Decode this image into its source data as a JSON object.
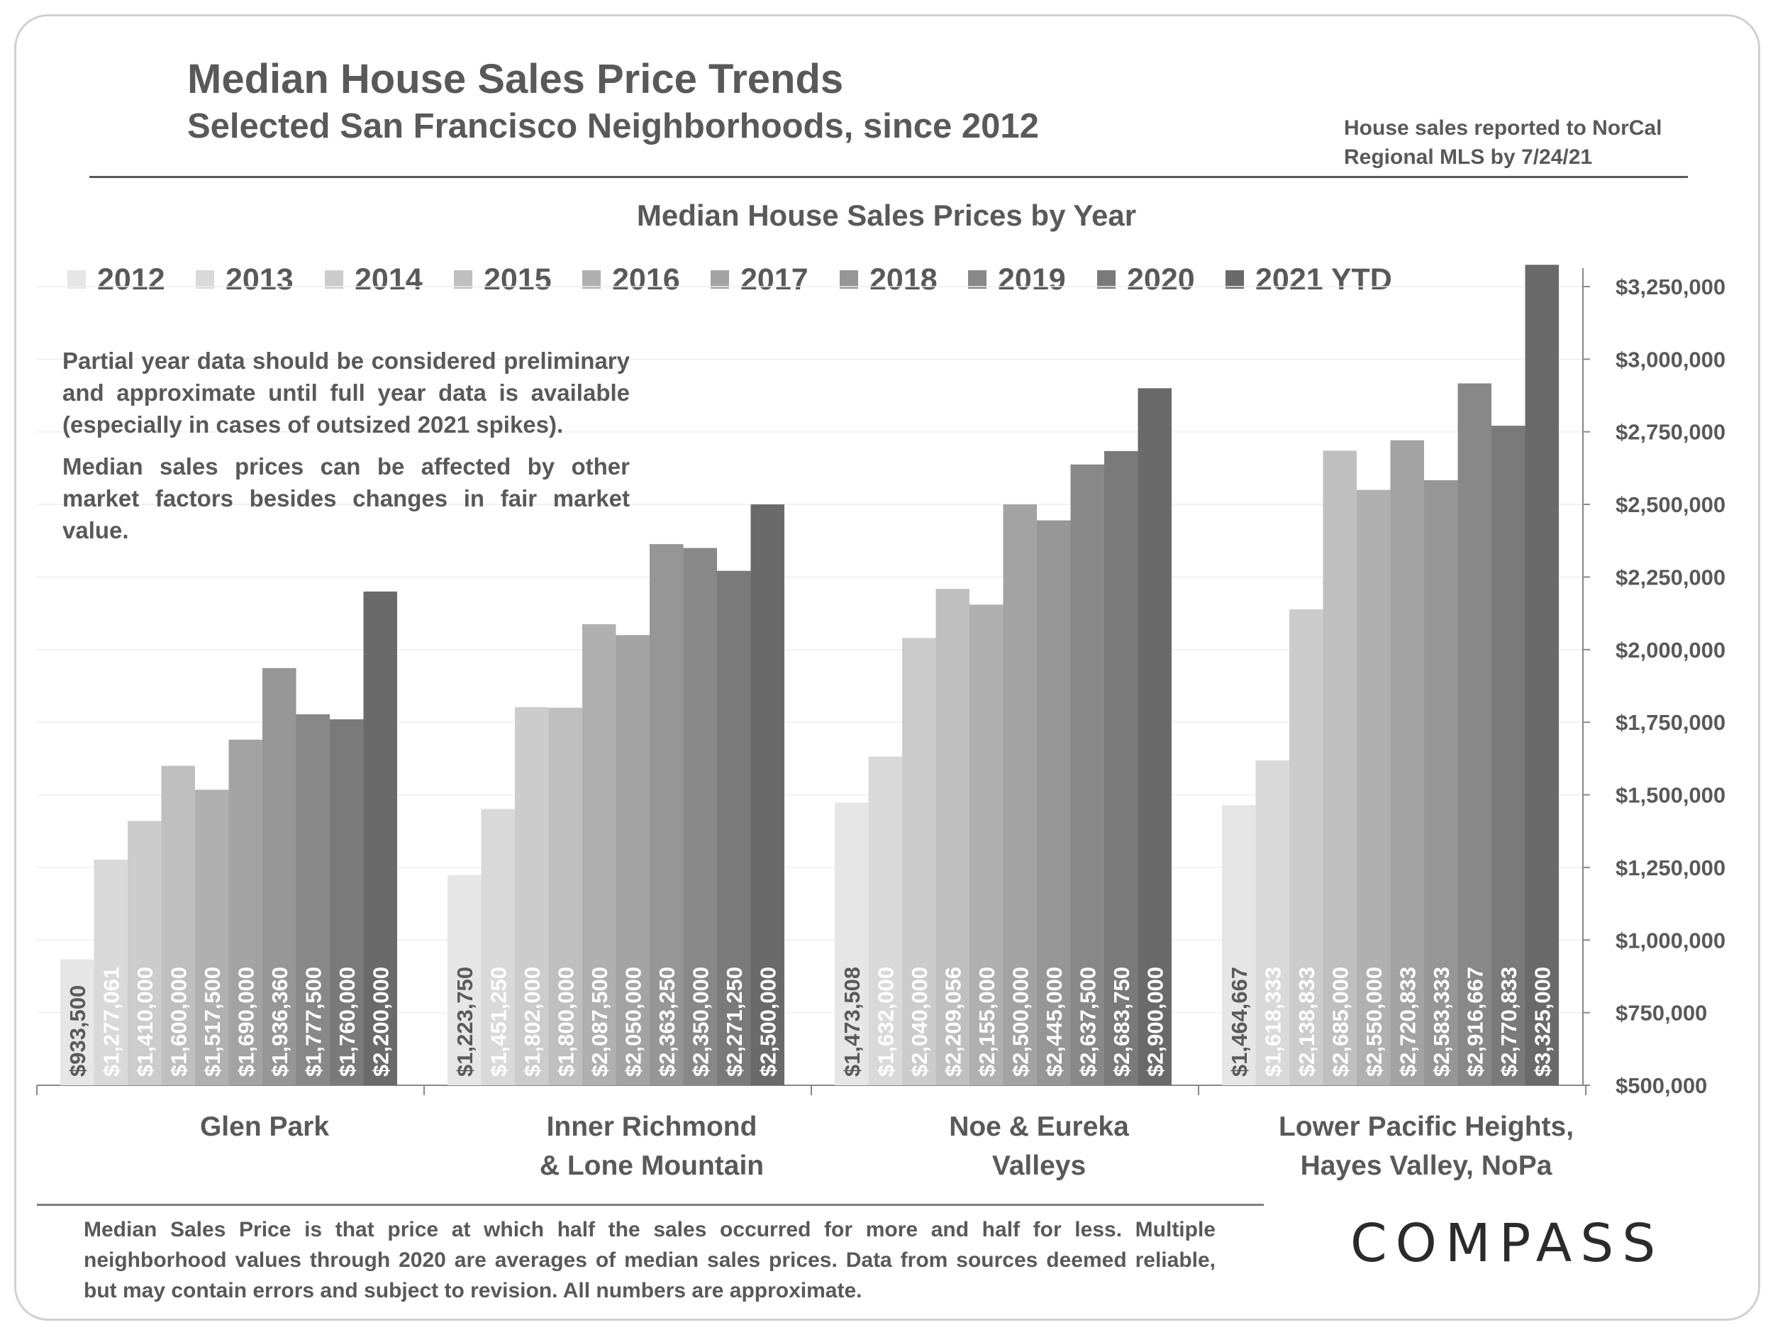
{
  "header": {
    "title": "Median House Sales Price Trends",
    "subtitle": "Selected San Francisco Neighborhoods, since 2012",
    "source_note_line1": "House sales reported to NorCal",
    "source_note_line2": "Regional MLS by 7/24/21"
  },
  "disclaimer": {
    "paragraph1": "Partial year data should be considered preliminary and approximate until full year data is available (especially in cases of outsized 2021 spikes).",
    "paragraph2": "Median sales prices can be affected by other market factors besides changes in fair market value."
  },
  "footer": {
    "note": "Median Sales Price is that price at which half the sales occurred for more and half for less. Multiple neighborhood values through 2020 are averages of median sales prices. Data from sources deemed reliable, but may contain errors and subject to revision.  All numbers are approximate.",
    "brand": "COMPASS"
  },
  "colors": {
    "text": "#595959",
    "series": [
      "#e6e6e6",
      "#d9d9d9",
      "#cccccc",
      "#bfbfbf",
      "#b0b0b0",
      "#a3a3a3",
      "#969696",
      "#888888",
      "#7a7a7a",
      "#6a6a6a"
    ]
  },
  "chart_data": {
    "type": "bar",
    "title": "Median House Sales Prices by Year",
    "categories": [
      [
        "Glen Park"
      ],
      [
        "Inner Richmond",
        "& Lone Mountain"
      ],
      [
        "Noe & Eureka",
        "Valleys"
      ],
      [
        "Lower Pacific Heights,",
        "Hayes Valley, NoPa"
      ]
    ],
    "series": [
      {
        "name": "2012",
        "values": [
          933500,
          1223750,
          1473508,
          1464667
        ],
        "labels": [
          "$933,500",
          "$1,223,750",
          "$1,473,508",
          "$1,464,667"
        ]
      },
      {
        "name": "2013",
        "values": [
          1277061,
          1451250,
          1632000,
          1618333
        ],
        "labels": [
          "$1,277,061",
          "$1,451,250",
          "$1,632,000",
          "$1,618,333"
        ]
      },
      {
        "name": "2014",
        "values": [
          1410000,
          1802000,
          2040000,
          2138833
        ],
        "labels": [
          "$1,410,000",
          "$1,802,000",
          "$2,040,000",
          "$2,138,833"
        ]
      },
      {
        "name": "2015",
        "values": [
          1600000,
          1800000,
          2209056,
          2685000
        ],
        "labels": [
          "$1,600,000",
          "$1,800,000",
          "$2,209,056",
          "$2,685,000"
        ]
      },
      {
        "name": "2016",
        "values": [
          1517500,
          2087500,
          2155000,
          2550000
        ],
        "labels": [
          "$1,517,500",
          "$2,087,500",
          "$2,155,000",
          "$2,550,000"
        ]
      },
      {
        "name": "2017",
        "values": [
          1690000,
          2050000,
          2500000,
          2720833
        ],
        "labels": [
          "$1,690,000",
          "$2,050,000",
          "$2,500,000",
          "$2,720,833"
        ]
      },
      {
        "name": "2018",
        "values": [
          1936360,
          2363250,
          2445000,
          2583333
        ],
        "labels": [
          "$1,936,360",
          "$2,363,250",
          "$2,445,000",
          "$2,583,333"
        ]
      },
      {
        "name": "2019",
        "values": [
          1777500,
          2350000,
          2637500,
          2916667
        ],
        "labels": [
          "$1,777,500",
          "$2,350,000",
          "$2,637,500",
          "$2,916,667"
        ]
      },
      {
        "name": "2020",
        "values": [
          1760000,
          2271250,
          2683750,
          2770833
        ],
        "labels": [
          "$1,760,000",
          "$2,271,250",
          "$2,683,750",
          "$2,770,833"
        ]
      },
      {
        "name": "2021 YTD",
        "values": [
          2200000,
          2500000,
          2900000,
          3325000
        ],
        "labels": [
          "$2,200,000",
          "$2,500,000",
          "$2,900,000",
          "$3,325,000"
        ]
      }
    ],
    "ylim": [
      500000,
      3250000
    ],
    "yticks": [
      500000,
      750000,
      1000000,
      1250000,
      1500000,
      1750000,
      2000000,
      2250000,
      2500000,
      2750000,
      3000000,
      3250000
    ],
    "ytick_labels": [
      "$500,000",
      "$750,000",
      "$1,000,000",
      "$1,250,000",
      "$1,500,000",
      "$1,750,000",
      "$2,000,000",
      "$2,250,000",
      "$2,500,000",
      "$2,750,000",
      "$3,000,000",
      "$3,250,000"
    ],
    "y_axis_side": "right",
    "grid": true,
    "legend": "top"
  }
}
